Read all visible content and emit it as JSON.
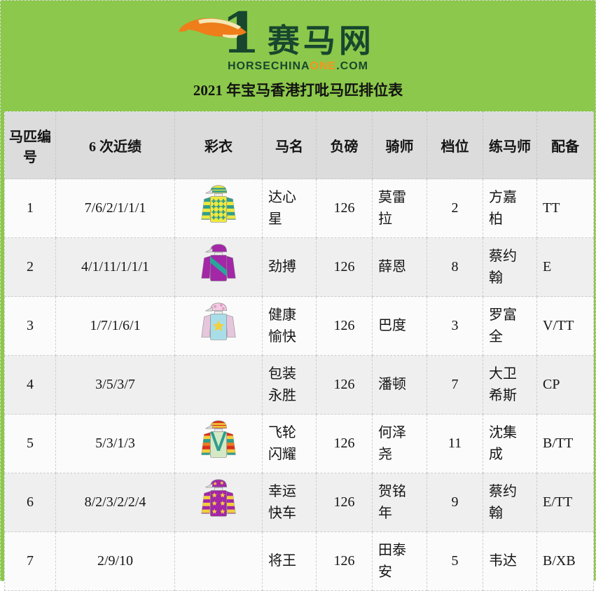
{
  "brand": {
    "logo_number": "1",
    "logo_text": "赛马网",
    "domain_prefix": "HORSECHINA",
    "domain_highlight": "ONE",
    "domain_suffix": ".COM",
    "title": "2021 年宝马香港打吡马匹排位表"
  },
  "colors": {
    "page_green": "#8CC84B",
    "logo_dark_green": "#17472E",
    "accent_orange": "#F7941D",
    "header_gray": "#DCDCDC",
    "alt_row_gray": "#EFEFEF",
    "link_blue": "#4268A6"
  },
  "table": {
    "columns": [
      "马匹编号",
      "6 次近绩",
      "彩衣",
      "马名",
      "负磅",
      "骑师",
      "档位",
      "练马师",
      "配备"
    ],
    "rows": [
      {
        "number": "1",
        "record": "7/6/2/1/1/1",
        "name": "达心星",
        "weight": "126",
        "jockey": "莫雷拉",
        "gate": "2",
        "trainer": "方嘉柏",
        "gear": "TT",
        "silks": {
          "cap": "#EFE93F",
          "capStripe": "#2E9E8C",
          "body": "#EFE93F",
          "pattern": "crosses",
          "patternColor": "#2E9E8C",
          "sleeves": "#2E9E8C",
          "sleeveHoops": "#EFE93F"
        }
      },
      {
        "number": "2",
        "record": "4/1/11/1/1/1",
        "name": "劲搏",
        "weight": "126",
        "jockey": "薛恩",
        "gate": "8",
        "trainer": "蔡约翰",
        "gear": "E",
        "silks": {
          "cap": "#A327A7",
          "body": "#A327A7",
          "pattern": "sash",
          "patternColor": "#27A79B",
          "sleeves": "#A327A7"
        }
      },
      {
        "number": "3",
        "record": "1/7/1/6/1",
        "name": "健康愉快",
        "weight": "126",
        "jockey": "巴度",
        "gate": "3",
        "trainer": "罗富全",
        "gear": "V/TT",
        "silks": {
          "cap": "#F4CBE1",
          "capDots": "#DD9CC6",
          "body": "#A9DEE9",
          "pattern": "star",
          "patternColor": "#F2CF3D",
          "sleeves": "#E6C6DD"
        }
      },
      {
        "number": "4",
        "record": "3/5/3/7",
        "name": "包装永胜",
        "weight": "126",
        "jockey": "潘顿",
        "gate": "7",
        "trainer": "大卫希斯",
        "gear": "CP",
        "silks": null
      },
      {
        "number": "5",
        "record": "5/3/1/3",
        "name": "飞轮闪耀",
        "weight": "126",
        "jockey": "何泽尧",
        "gate": "11",
        "trainer": "沈集成",
        "gear": "B/TT",
        "silks": {
          "cap": "#D9301F",
          "capStripe": "#F2CF3D",
          "body": "#D5E9C6",
          "pattern": "braces",
          "patternColor": "#2E9E8C",
          "sleeves": "#D9301F",
          "sleeveMulti": [
            "#D9301F",
            "#F2CF3D",
            "#2E9E8C",
            "#E87E24",
            "#D9301F",
            "#F2CF3D",
            "#2E9E8C"
          ]
        }
      },
      {
        "number": "6",
        "record": "8/2/3/2/2/4",
        "name": "幸运快车",
        "weight": "126",
        "jockey": "贺铭年",
        "gate": "9",
        "trainer": "蔡约翰",
        "gear": "E/TT",
        "silks": {
          "cap": "#A327A7",
          "capStars": "#F2CF3D",
          "body": "#A327A7",
          "pattern": "stars",
          "patternColor": "#F2CF3D",
          "sleeves": "#A327A7",
          "sleeveHoops": "#F2CF3D"
        }
      },
      {
        "number": "7",
        "record": "2/9/10",
        "name": "将王",
        "weight": "126",
        "jockey": "田泰安",
        "gate": "5",
        "trainer": "韦达",
        "gear": "B/XB",
        "silks": null
      }
    ]
  }
}
